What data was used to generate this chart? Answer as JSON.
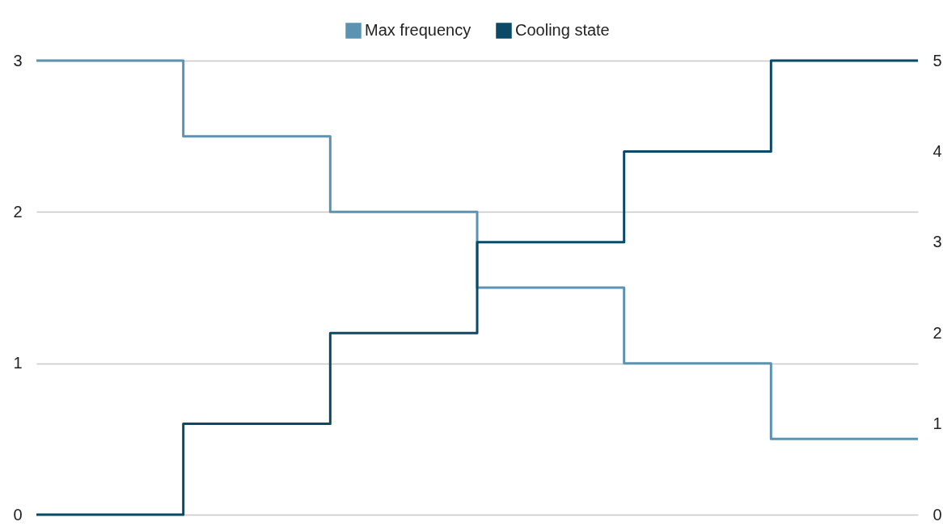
{
  "chart_data": {
    "type": "step",
    "categories": [
      null,
      null,
      null,
      null,
      null,
      null,
      null
    ],
    "series": [
      {
        "name": "Max frequency",
        "color": "#5b93b0",
        "values": [
          3,
          2.5,
          2,
          1.5,
          1,
          0.5,
          0.5
        ]
      },
      {
        "name": "Cooling state",
        "color": "#0b4a66",
        "values": [
          0,
          1,
          2,
          3,
          4,
          5,
          5
        ],
        "axis": "y2"
      }
    ],
    "ylim": [
      0,
      3
    ],
    "yticks": [
      0,
      1,
      2,
      3
    ],
    "y2lim": [
      0,
      5
    ],
    "y2ticks": [
      0,
      1,
      2,
      3,
      4,
      5
    ],
    "grid": "y",
    "legend": "top",
    "tick_labels": "y",
    "marker": "none",
    "line_style": "solid"
  }
}
